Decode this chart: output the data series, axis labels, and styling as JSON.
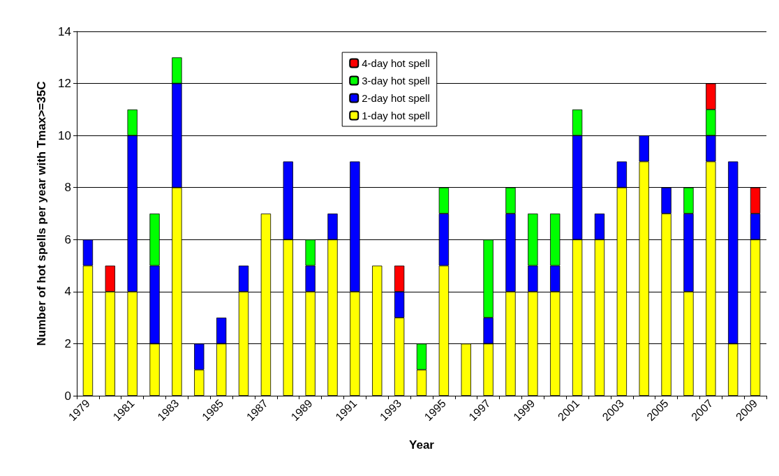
{
  "chart_data": {
    "type": "bar",
    "stacked": true,
    "xlabel": "Year",
    "ylabel": "Number of hot spells per year with Tmax>=35C",
    "categories": [
      "1979",
      null,
      "1981",
      null,
      "1983",
      null,
      "1985",
      null,
      "1987",
      null,
      "1989",
      null,
      "1991",
      null,
      "1993",
      null,
      "1995",
      null,
      "1997",
      null,
      "1999",
      null,
      "2001",
      null,
      "2003",
      null,
      "2005",
      null,
      "2007",
      null,
      "2009"
    ],
    "series": [
      {
        "name": "1-day hot spell",
        "color": "#ffff00",
        "values": [
          5,
          4,
          4,
          2,
          8,
          1,
          2,
          4,
          7,
          6,
          4,
          6,
          4,
          5,
          3,
          1,
          5,
          2,
          2,
          4,
          4,
          4,
          6,
          6,
          8,
          9,
          7,
          4,
          9,
          2,
          6
        ]
      },
      {
        "name": "2-day hot spell",
        "color": "#0000ff",
        "values": [
          1,
          0,
          6,
          3,
          4,
          1,
          1,
          1,
          0,
          3,
          1,
          1,
          5,
          0,
          1,
          0,
          2,
          0,
          1,
          3,
          1,
          1,
          4,
          1,
          1,
          1,
          1,
          3,
          1,
          7,
          1
        ]
      },
      {
        "name": "3-day hot spell",
        "color": "#00ff00",
        "values": [
          0,
          0,
          1,
          2,
          1,
          0,
          0,
          0,
          0,
          0,
          1,
          0,
          0,
          0,
          0,
          1,
          1,
          0,
          3,
          1,
          2,
          2,
          1,
          0,
          0,
          0,
          0,
          1,
          1,
          0,
          0
        ]
      },
      {
        "name": "4-day hot spell",
        "color": "#ff0000",
        "values": [
          0,
          1,
          0,
          0,
          0,
          0,
          0,
          0,
          0,
          0,
          0,
          0,
          0,
          0,
          1,
          0,
          0,
          0,
          0,
          0,
          0,
          0,
          0,
          0,
          0,
          0,
          0,
          0,
          1,
          0,
          1
        ]
      }
    ],
    "ylim": [
      0,
      14
    ],
    "yticks": [
      0,
      2,
      4,
      6,
      8,
      10,
      12,
      14
    ],
    "grid": "y",
    "legend": "top"
  }
}
